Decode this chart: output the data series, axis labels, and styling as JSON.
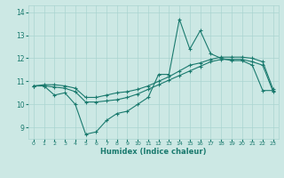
{
  "xlabel": "Humidex (Indice chaleur)",
  "background_color": "#cce8e4",
  "grid_color": "#aad4d0",
  "line_color": "#1a7a6e",
  "xlim": [
    -0.5,
    23.5
  ],
  "ylim": [
    8.5,
    14.3
  ],
  "yticks": [
    9,
    10,
    11,
    12,
    13,
    14
  ],
  "xticks": [
    0,
    1,
    2,
    3,
    4,
    5,
    6,
    7,
    8,
    9,
    10,
    11,
    12,
    13,
    14,
    15,
    16,
    17,
    18,
    19,
    20,
    21,
    22,
    23
  ],
  "s1_x": [
    0,
    1,
    2,
    3,
    4,
    5,
    6,
    7,
    8,
    9,
    10,
    11,
    12,
    13,
    14,
    15,
    16,
    17,
    18,
    19,
    20,
    21,
    22,
    23
  ],
  "s1_y": [
    10.8,
    10.8,
    10.4,
    10.5,
    10.0,
    8.7,
    8.8,
    9.3,
    9.6,
    9.7,
    10.0,
    10.3,
    11.3,
    11.3,
    13.7,
    12.4,
    13.2,
    12.2,
    12.0,
    11.9,
    11.9,
    11.7,
    10.6,
    10.6
  ],
  "s2_x": [
    0,
    1,
    2,
    3,
    4,
    5,
    6,
    7,
    8,
    9,
    10,
    11,
    12,
    13,
    14,
    15,
    16,
    17,
    18,
    19,
    20,
    21,
    22,
    23
  ],
  "s2_y": [
    10.8,
    10.85,
    10.85,
    10.8,
    10.7,
    10.3,
    10.3,
    10.4,
    10.5,
    10.55,
    10.65,
    10.8,
    11.0,
    11.2,
    11.45,
    11.7,
    11.8,
    11.95,
    12.05,
    12.05,
    12.05,
    12.0,
    11.85,
    10.65
  ],
  "s3_x": [
    0,
    1,
    2,
    3,
    4,
    5,
    6,
    7,
    8,
    9,
    10,
    11,
    12,
    13,
    14,
    15,
    16,
    17,
    18,
    19,
    20,
    21,
    22,
    23
  ],
  "s3_y": [
    10.8,
    10.8,
    10.75,
    10.7,
    10.55,
    10.1,
    10.1,
    10.15,
    10.2,
    10.3,
    10.45,
    10.65,
    10.85,
    11.05,
    11.25,
    11.45,
    11.65,
    11.85,
    11.95,
    11.95,
    11.95,
    11.85,
    11.7,
    10.55
  ]
}
